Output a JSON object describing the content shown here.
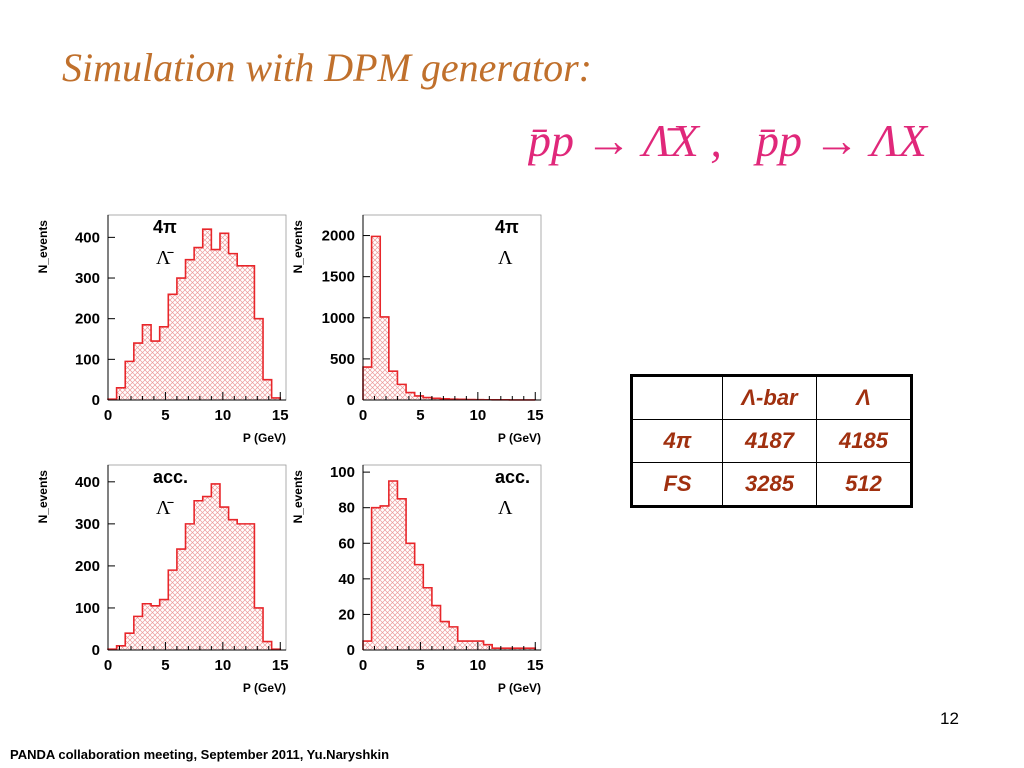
{
  "slide": {
    "title": "Simulation with DPM generator:",
    "formula": {
      "part1": "p̄p → Λ̄X ,",
      "part2": "p̄p → ΛX"
    },
    "page_number": "12",
    "footer": "PANDA collaboration meeting,  September 2011, Yu.Naryshkin"
  },
  "table": {
    "header": [
      "",
      "Λ-bar",
      "Λ"
    ],
    "rows": [
      [
        "4π",
        "4187",
        "4185"
      ],
      [
        "FS",
        "3285",
        "512"
      ]
    ]
  },
  "chart_data": [
    {
      "type": "histogram",
      "label_top": "4π",
      "label_bottom": "Λ̄",
      "xlabel": "P (GeV)",
      "ylabel": "N_events",
      "xlim": [
        0,
        15.5
      ],
      "ylim": [
        0,
        455
      ],
      "xticks": [
        0,
        5,
        10,
        15
      ],
      "yticks": [
        0,
        100,
        200,
        300,
        400
      ],
      "bin_width": 0.75,
      "values": [
        2,
        30,
        95,
        140,
        185,
        145,
        180,
        260,
        300,
        345,
        375,
        420,
        370,
        410,
        360,
        330,
        330,
        200,
        50,
        5
      ]
    },
    {
      "type": "histogram",
      "label_top": "4π",
      "label_bottom": "Λ",
      "xlabel": "P (GeV)",
      "ylabel": "N_events",
      "xlim": [
        0,
        15.5
      ],
      "ylim": [
        0,
        2250
      ],
      "xticks": [
        0,
        5,
        10,
        15
      ],
      "yticks": [
        0,
        500,
        1000,
        1500,
        2000
      ],
      "bin_width": 0.75,
      "values": [
        400,
        1990,
        1010,
        350,
        190,
        90,
        50,
        30,
        20,
        15,
        10,
        8,
        5,
        4,
        3,
        2,
        2,
        1,
        1,
        1
      ]
    },
    {
      "type": "histogram",
      "label_top": "acc.",
      "label_bottom": "Λ̄",
      "xlabel": "P (GeV)",
      "ylabel": "N_events",
      "xlim": [
        0,
        15.5
      ],
      "ylim": [
        0,
        440
      ],
      "xticks": [
        0,
        5,
        10,
        15
      ],
      "yticks": [
        0,
        100,
        200,
        300,
        400
      ],
      "bin_width": 0.75,
      "values": [
        2,
        10,
        40,
        80,
        110,
        105,
        120,
        190,
        240,
        300,
        355,
        365,
        395,
        340,
        310,
        300,
        300,
        100,
        20,
        2
      ]
    },
    {
      "type": "histogram",
      "label_top": "acc.",
      "label_bottom": "Λ",
      "xlabel": "P (GeV)",
      "ylabel": "N_events",
      "xlim": [
        0,
        15.5
      ],
      "ylim": [
        0,
        104
      ],
      "xticks": [
        0,
        5,
        10,
        15
      ],
      "yticks": [
        0,
        20,
        40,
        60,
        80,
        100
      ],
      "bin_width": 0.75,
      "values": [
        5,
        80,
        81,
        95,
        85,
        60,
        48,
        35,
        25,
        16,
        13,
        5,
        5,
        5,
        3,
        1,
        1,
        1,
        1,
        1
      ]
    }
  ]
}
